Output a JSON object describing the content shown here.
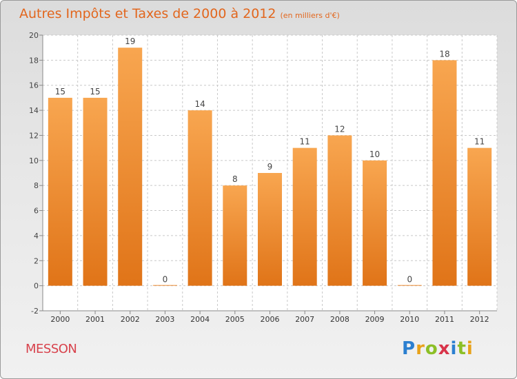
{
  "title": "Autres Impôts et Taxes de 2000 à 2012",
  "title_unit": "(en milliers d'€)",
  "commune": "MESSON",
  "logo": {
    "text": "Proxiti",
    "letters": [
      "P",
      "r",
      "o",
      "x",
      "i",
      "t",
      "i"
    ],
    "colors": [
      "#2b7fd0",
      "#e8a21a",
      "#8cbf26",
      "#d8344a",
      "#2b7fd0",
      "#8cbf26",
      "#e8a21a"
    ]
  },
  "colors": {
    "bar_light": "#f8a650",
    "bar_dark": "#e07418",
    "title": "#e2661d",
    "commune": "#d8424c"
  },
  "chart_data": {
    "type": "bar",
    "categories": [
      "2000",
      "2001",
      "2002",
      "2003",
      "2004",
      "2005",
      "2006",
      "2007",
      "2008",
      "2009",
      "2010",
      "2011",
      "2012"
    ],
    "values": [
      15,
      15,
      19,
      0,
      14,
      8,
      9,
      11,
      12,
      10,
      0,
      18,
      11
    ],
    "data_labels": [
      "15",
      "15",
      "19",
      "0",
      "14",
      "8",
      "9",
      "11",
      "12",
      "10",
      "0",
      "18",
      "11"
    ],
    "yticks": [
      "-2",
      "0",
      "2",
      "4",
      "6",
      "8",
      "10",
      "12",
      "14",
      "16",
      "18",
      "20"
    ],
    "ylim": [
      -2,
      20
    ],
    "grid": true,
    "title": "Autres Impôts et Taxes de 2000 à 2012",
    "xlabel": "",
    "ylabel": ""
  }
}
